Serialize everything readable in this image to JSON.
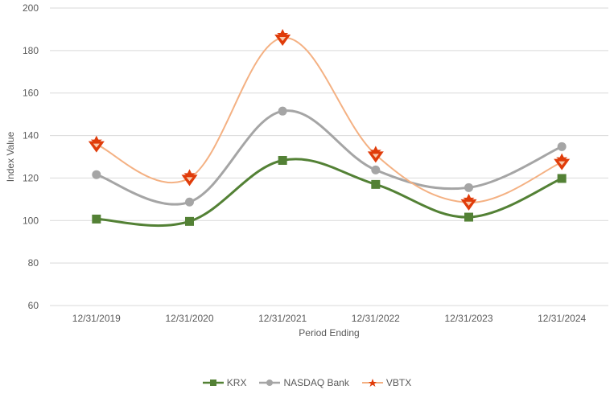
{
  "chart_data": {
    "type": "line",
    "title": "",
    "xlabel": "Period Ending",
    "ylabel": "Index Value",
    "ylim": [
      60,
      200
    ],
    "yticks": [
      60,
      80,
      100,
      120,
      140,
      160,
      180,
      200
    ],
    "grid": true,
    "smooth": true,
    "legend_position": "bottom",
    "categories": [
      "12/31/2019",
      "12/31/2020",
      "12/31/2021",
      "12/31/2022",
      "12/31/2023",
      "12/31/2024"
    ],
    "series": [
      {
        "name": "KRX",
        "values": [
          100.7,
          99.6,
          128.3,
          117.0,
          101.6,
          119.8
        ],
        "color": "#538135",
        "marker": "square"
      },
      {
        "name": "NASDAQ Bank",
        "values": [
          121.6,
          108.7,
          151.5,
          123.8,
          115.5,
          134.8
        ],
        "color": "#A5A5A5",
        "marker": "circle"
      },
      {
        "name": "VBTX",
        "values": [
          135.8,
          120.0,
          186.0,
          131.0,
          108.5,
          127.5
        ],
        "color": "#F4B183",
        "marker_color": "#E03C0A",
        "marker": "star"
      }
    ]
  },
  "legend": {
    "items": [
      {
        "label": "KRX"
      },
      {
        "label": "NASDAQ Bank"
      },
      {
        "label": "VBTX"
      }
    ]
  }
}
